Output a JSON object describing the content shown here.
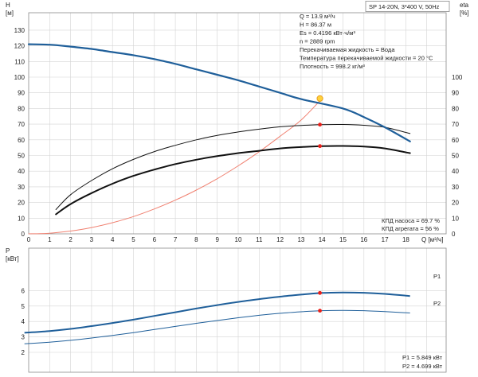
{
  "header_label": "SP 14-20N, 3*400 V, 50Hz",
  "info_lines": [
    "Q = 13.9 м³/ч",
    "H = 86.37 м",
    "Es = 0.4196 кВт·ч/м³",
    "n = 2889 rpm",
    "Перекачиваемая жидкость = Вода",
    "Температура перекачиваемой жидкости = 20 °C",
    "Плотность = 998.2 кг/м³"
  ],
  "efficiency_lines": [
    "КПД насоса = 69.7 %",
    "КПД агрегата = 56 %"
  ],
  "power_lines": [
    "P1 = 5.849 кВт",
    "P2 = 4.699 кВт"
  ],
  "colors": {
    "head_curve": "#1f5f9a",
    "power_curve": "#1f5f9a",
    "efficiency_curve": "#111111",
    "system_curve": "#f08070",
    "duty_point": "#e8201a",
    "duty_point_head_fill": "#ffd23c",
    "duty_point_head_stroke": "#e8a020"
  },
  "chart_data": [
    {
      "type": "line",
      "name": "head-efficiency",
      "x_axis": {
        "label": "Q [м³/ч]",
        "ticks": [
          "0",
          "1",
          "2",
          "3",
          "4",
          "5",
          "6",
          "7",
          "8",
          "9",
          "10",
          "11",
          "12",
          "13",
          "14",
          "15",
          "16",
          "17",
          "18"
        ],
        "range": [
          0,
          19.5
        ]
      },
      "y_left": {
        "label_top": "H",
        "label_unit": "[м]",
        "ticks": [
          "0",
          "10",
          "20",
          "30",
          "40",
          "50",
          "60",
          "70",
          "80",
          "90",
          "100",
          "110",
          "120",
          "130"
        ],
        "range": [
          0,
          140
        ]
      },
      "y_right": {
        "label_top": "eta",
        "label_unit": "[%]",
        "ticks": [
          "0",
          "10",
          "20",
          "30",
          "40",
          "50",
          "60",
          "70",
          "80",
          "90",
          "100"
        ],
        "range": [
          0,
          140
        ]
      },
      "grid": true,
      "series": [
        {
          "role": "head",
          "x": [
            0,
            1,
            2,
            3,
            4,
            5,
            6,
            7,
            8,
            9,
            10,
            11,
            12,
            13,
            14,
            15,
            16,
            17,
            18.2
          ],
          "y": [
            121,
            120.7,
            119.5,
            118,
            116,
            114,
            111.5,
            108.5,
            105,
            101.5,
            98,
            94,
            90,
            86,
            86.37,
            80,
            74.5,
            68,
            59
          ]
        },
        {
          "role": "pump-efficiency",
          "x": [
            1.3,
            2,
            3,
            4,
            5,
            6,
            7,
            8,
            9,
            10,
            11,
            12,
            13,
            14,
            15,
            16,
            17,
            18.2
          ],
          "y": [
            15.5,
            25,
            34,
            41.5,
            47.5,
            52.5,
            56.5,
            60,
            62.8,
            65,
            66.8,
            68.3,
            69.2,
            69.7,
            69.8,
            69.3,
            68,
            64
          ]
        },
        {
          "role": "unit-efficiency",
          "x": [
            1.3,
            2,
            3,
            4,
            5,
            6,
            7,
            8,
            9,
            10,
            11,
            12,
            13,
            14,
            15,
            16,
            17,
            18.2
          ],
          "y": [
            12.5,
            19,
            26,
            32,
            37,
            41,
            44.5,
            47.3,
            49.6,
            51.5,
            53,
            54.5,
            55.4,
            56,
            56.1,
            55.7,
            54.5,
            51.5
          ]
        },
        {
          "role": "system",
          "x": [
            0,
            1,
            2,
            3,
            4,
            5,
            6,
            7,
            8,
            9,
            10,
            11,
            12,
            13,
            14
          ],
          "y": [
            0,
            0.4,
            1.8,
            4,
            7.1,
            11,
            15.9,
            21.5,
            27.9,
            35.2,
            43.4,
            52.4,
            62.3,
            72.6,
            86.37
          ]
        }
      ],
      "duty_points": [
        {
          "role": "head",
          "x": 13.9,
          "y": 86.37
        },
        {
          "role": "pump-efficiency",
          "x": 13.9,
          "y": 69.7
        },
        {
          "role": "unit-efficiency",
          "x": 13.9,
          "y": 56
        }
      ]
    },
    {
      "type": "line",
      "name": "power",
      "y_left": {
        "label_top": "P",
        "label_unit": "[кВт]",
        "ticks": [
          "2",
          "3",
          "4",
          "5",
          "6"
        ],
        "range": [
          2,
          7
        ]
      },
      "grid": true,
      "series": [
        {
          "name": "P1",
          "x": [
            -0.2,
            1,
            2,
            3,
            4,
            5,
            6,
            7,
            8,
            9,
            10,
            11,
            12,
            13,
            14,
            15,
            16,
            17,
            18.2
          ],
          "y": [
            3.27,
            3.38,
            3.52,
            3.7,
            3.9,
            4.12,
            4.36,
            4.6,
            4.84,
            5.06,
            5.27,
            5.45,
            5.61,
            5.74,
            5.85,
            5.88,
            5.86,
            5.79,
            5.65
          ]
        },
        {
          "name": "P2",
          "x": [
            -0.2,
            1,
            2,
            3,
            4,
            5,
            6,
            7,
            8,
            9,
            10,
            11,
            12,
            13,
            14,
            15,
            16,
            17,
            18.2
          ],
          "y": [
            2.55,
            2.66,
            2.78,
            2.93,
            3.1,
            3.28,
            3.48,
            3.68,
            3.88,
            4.06,
            4.24,
            4.4,
            4.53,
            4.63,
            4.7,
            4.72,
            4.7,
            4.64,
            4.55
          ]
        }
      ],
      "duty_points": [
        {
          "series": "P1",
          "x": 13.9,
          "y": 5.849
        },
        {
          "series": "P2",
          "x": 13.9,
          "y": 4.699
        }
      ]
    }
  ]
}
